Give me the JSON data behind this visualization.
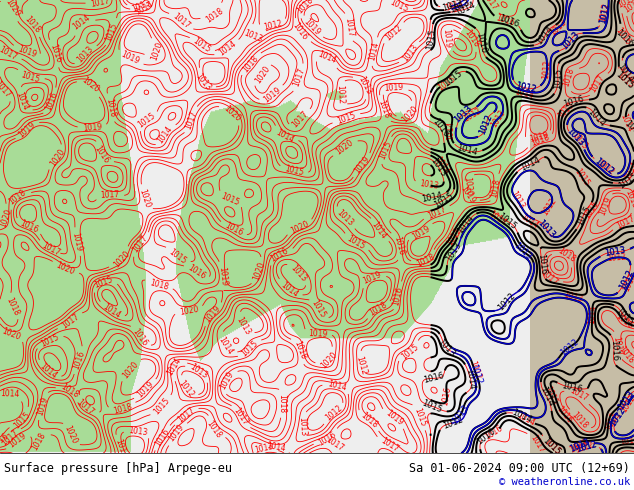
{
  "title_left": "Surface pressure [hPa] Arpege-eu",
  "title_right": "Sa 01-06-2024 09:00 UTC (12+69)",
  "credit": "© weatheronline.co.uk",
  "bg_color": "#ffffff",
  "sea_color_rgb": [
    0.937,
    0.937,
    0.937
  ],
  "green_color_rgb": [
    0.659,
    0.863,
    0.596
  ],
  "tan_color_rgb": [
    0.78,
    0.745,
    0.651
  ],
  "contour_red": "#ff0000",
  "contour_blue": "#0000cc",
  "contour_black": "#000000",
  "footer_fontsize": 8.5,
  "credit_fontsize": 7.5,
  "figsize": [
    6.34,
    4.9
  ],
  "dpi": 100
}
